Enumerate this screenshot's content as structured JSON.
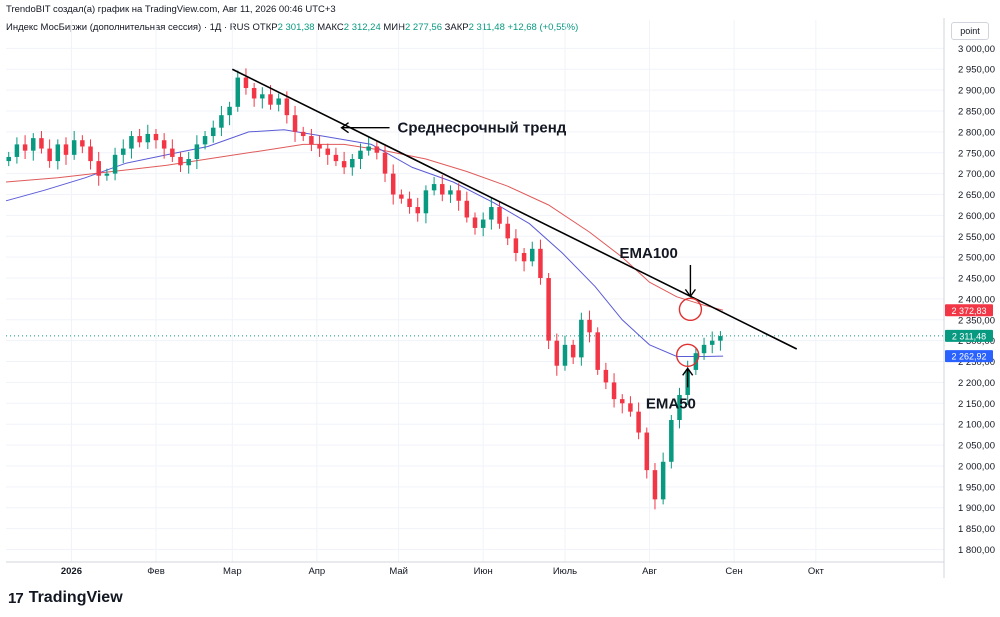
{
  "header": {
    "attribution": "TrendoBIT создал(а) график на TradingView.com, Авг 11, 2026 00:46 UTC+3",
    "symbol": "Индекс МосБиржи (дополнительная сессия) · 1Д · RUS",
    "open_label": "ОТКР",
    "open_value": "2 301,38",
    "high_label": "МАКС",
    "high_value": "2 312,24",
    "low_label": "МИН",
    "low_value": "2 277,56",
    "close_label": "ЗАКР",
    "close_value": "2 311,48",
    "change": "+12,68 (+0,55%)",
    "scale_mode": "point"
  },
  "logo": {
    "text": "TradingView"
  },
  "chart_data": {
    "type": "candlestick",
    "ylim": [
      1770,
      3020
    ],
    "y_ticks": [
      1800,
      1850,
      1900,
      1950,
      2000,
      2050,
      2100,
      2150,
      2200,
      2250,
      2300,
      2350,
      2400,
      2450,
      2500,
      2550,
      2600,
      2650,
      2700,
      2750,
      2800,
      2850,
      2900,
      2950,
      3000
    ],
    "y_tick_labels": [
      "1 800,00",
      "1 850,00",
      "1 900,00",
      "1 950,00",
      "2 000,00",
      "2 050,00",
      "2 100,00",
      "2 150,00",
      "2 200,00",
      "2 250,00",
      "2 300,00",
      "2 350,00",
      "2 400,00",
      "2 450,00",
      "2 500,00",
      "2 550,00",
      "2 600,00",
      "2 650,00",
      "2 700,00",
      "2 750,00",
      "2 800,00",
      "2 850,00",
      "2 900,00",
      "2 950,00",
      "3 000,00"
    ],
    "x_month_labels": [
      {
        "label": "2026",
        "day": 0
      },
      {
        "label": "Фев",
        "day": 31
      },
      {
        "label": "Мар",
        "day": 59
      },
      {
        "label": "Апр",
        "day": 90
      },
      {
        "label": "Май",
        "day": 120
      },
      {
        "label": "Июн",
        "day": 151
      },
      {
        "label": "Июль",
        "day": 181
      },
      {
        "label": "Авг",
        "day": 212
      },
      {
        "label": "Сен",
        "day": 243
      },
      {
        "label": "Окт",
        "day": 273
      }
    ],
    "x_range_days": [
      -24,
      320
    ],
    "candle_closes": [
      {
        "day": -23,
        "c": 2740
      },
      {
        "day": -20,
        "c": 2770
      },
      {
        "day": -17,
        "c": 2755
      },
      {
        "day": -14,
        "c": 2785
      },
      {
        "day": -11,
        "c": 2760
      },
      {
        "day": -8,
        "c": 2730
      },
      {
        "day": -5,
        "c": 2770
      },
      {
        "day": -2,
        "c": 2745
      },
      {
        "day": 1,
        "c": 2780
      },
      {
        "day": 4,
        "c": 2765
      },
      {
        "day": 7,
        "c": 2730
      },
      {
        "day": 10,
        "c": 2695
      },
      {
        "day": 13,
        "c": 2700
      },
      {
        "day": 16,
        "c": 2745
      },
      {
        "day": 19,
        "c": 2760
      },
      {
        "day": 22,
        "c": 2790
      },
      {
        "day": 25,
        "c": 2775
      },
      {
        "day": 28,
        "c": 2795
      },
      {
        "day": 31,
        "c": 2780
      },
      {
        "day": 34,
        "c": 2760
      },
      {
        "day": 37,
        "c": 2740
      },
      {
        "day": 40,
        "c": 2720
      },
      {
        "day": 43,
        "c": 2735
      },
      {
        "day": 46,
        "c": 2770
      },
      {
        "day": 49,
        "c": 2790
      },
      {
        "day": 52,
        "c": 2810
      },
      {
        "day": 55,
        "c": 2840
      },
      {
        "day": 58,
        "c": 2860
      },
      {
        "day": 61,
        "c": 2930
      },
      {
        "day": 64,
        "c": 2905
      },
      {
        "day": 67,
        "c": 2880
      },
      {
        "day": 70,
        "c": 2890
      },
      {
        "day": 73,
        "c": 2865
      },
      {
        "day": 76,
        "c": 2880
      },
      {
        "day": 79,
        "c": 2840
      },
      {
        "day": 82,
        "c": 2800
      },
      {
        "day": 85,
        "c": 2790
      },
      {
        "day": 88,
        "c": 2770
      },
      {
        "day": 91,
        "c": 2760
      },
      {
        "day": 94,
        "c": 2745
      },
      {
        "day": 97,
        "c": 2730
      },
      {
        "day": 100,
        "c": 2715
      },
      {
        "day": 103,
        "c": 2735
      },
      {
        "day": 106,
        "c": 2755
      },
      {
        "day": 109,
        "c": 2765
      },
      {
        "day": 112,
        "c": 2750
      },
      {
        "day": 115,
        "c": 2700
      },
      {
        "day": 118,
        "c": 2650
      },
      {
        "day": 121,
        "c": 2640
      },
      {
        "day": 124,
        "c": 2620
      },
      {
        "day": 127,
        "c": 2605
      },
      {
        "day": 130,
        "c": 2660
      },
      {
        "day": 133,
        "c": 2675
      },
      {
        "day": 136,
        "c": 2650
      },
      {
        "day": 139,
        "c": 2660
      },
      {
        "day": 142,
        "c": 2635
      },
      {
        "day": 145,
        "c": 2595
      },
      {
        "day": 148,
        "c": 2570
      },
      {
        "day": 151,
        "c": 2590
      },
      {
        "day": 154,
        "c": 2620
      },
      {
        "day": 157,
        "c": 2580
      },
      {
        "day": 160,
        "c": 2545
      },
      {
        "day": 163,
        "c": 2510
      },
      {
        "day": 166,
        "c": 2490
      },
      {
        "day": 169,
        "c": 2520
      },
      {
        "day": 172,
        "c": 2450
      },
      {
        "day": 175,
        "c": 2300
      },
      {
        "day": 178,
        "c": 2240
      },
      {
        "day": 181,
        "c": 2290
      },
      {
        "day": 184,
        "c": 2260
      },
      {
        "day": 187,
        "c": 2350
      },
      {
        "day": 190,
        "c": 2320
      },
      {
        "day": 193,
        "c": 2230
      },
      {
        "day": 196,
        "c": 2200
      },
      {
        "day": 199,
        "c": 2160
      },
      {
        "day": 202,
        "c": 2150
      },
      {
        "day": 205,
        "c": 2130
      },
      {
        "day": 208,
        "c": 2080
      },
      {
        "day": 211,
        "c": 1990
      },
      {
        "day": 214,
        "c": 1920
      },
      {
        "day": 217,
        "c": 2010
      },
      {
        "day": 220,
        "c": 2110
      },
      {
        "day": 223,
        "c": 2170
      },
      {
        "day": 226,
        "c": 2230
      },
      {
        "day": 229,
        "c": 2270
      },
      {
        "day": 232,
        "c": 2290
      },
      {
        "day": 235,
        "c": 2300
      },
      {
        "day": 238,
        "c": 2311
      }
    ],
    "ema50_points": [
      [
        -24,
        2635
      ],
      [
        -10,
        2660
      ],
      [
        5,
        2690
      ],
      [
        20,
        2725
      ],
      [
        35,
        2745
      ],
      [
        50,
        2765
      ],
      [
        65,
        2800
      ],
      [
        78,
        2805
      ],
      [
        92,
        2790
      ],
      [
        110,
        2770
      ],
      [
        125,
        2715
      ],
      [
        140,
        2680
      ],
      [
        155,
        2630
      ],
      [
        168,
        2580
      ],
      [
        180,
        2510
      ],
      [
        192,
        2430
      ],
      [
        202,
        2350
      ],
      [
        212,
        2290
      ],
      [
        222,
        2262
      ],
      [
        232,
        2262
      ],
      [
        239,
        2263
      ]
    ],
    "ema100_points": [
      [
        -24,
        2680
      ],
      [
        -5,
        2690
      ],
      [
        15,
        2705
      ],
      [
        35,
        2720
      ],
      [
        55,
        2740
      ],
      [
        70,
        2755
      ],
      [
        85,
        2770
      ],
      [
        100,
        2770
      ],
      [
        115,
        2755
      ],
      [
        130,
        2735
      ],
      [
        145,
        2705
      ],
      [
        160,
        2670
      ],
      [
        175,
        2625
      ],
      [
        190,
        2560
      ],
      [
        202,
        2500
      ],
      [
        212,
        2440
      ],
      [
        222,
        2405
      ],
      [
        232,
        2385
      ],
      [
        239,
        2373
      ]
    ],
    "trendline": {
      "start": [
        59,
        2950
      ],
      "end": [
        266,
        2280
      ]
    },
    "last_price_line": 2311.48,
    "price_tags": [
      {
        "value": 2372.83,
        "label": "2 372,83",
        "color": "#f23645"
      },
      {
        "value": 2311.48,
        "label": "2 311,48",
        "color": "#089981"
      },
      {
        "value": 2262.92,
        "label": "2 262,92",
        "color": "#2962ff"
      }
    ],
    "annotations": [
      {
        "text": "Среднесрочный тренд",
        "day": 135,
        "value": 2810
      },
      {
        "text": "EMA100",
        "day": 212,
        "value": 2510
      },
      {
        "text": "EMA50",
        "day": 218,
        "value": 2150
      }
    ],
    "circles": [
      {
        "day": 227,
        "value": 2375
      },
      {
        "day": 226,
        "value": 2265
      }
    ],
    "colors": {
      "up": "#089981",
      "down": "#f23645",
      "ema50": "#5b5bd6",
      "ema100": "#e05a5a",
      "trend": "#000000",
      "grid": "#f0f3fa"
    }
  }
}
